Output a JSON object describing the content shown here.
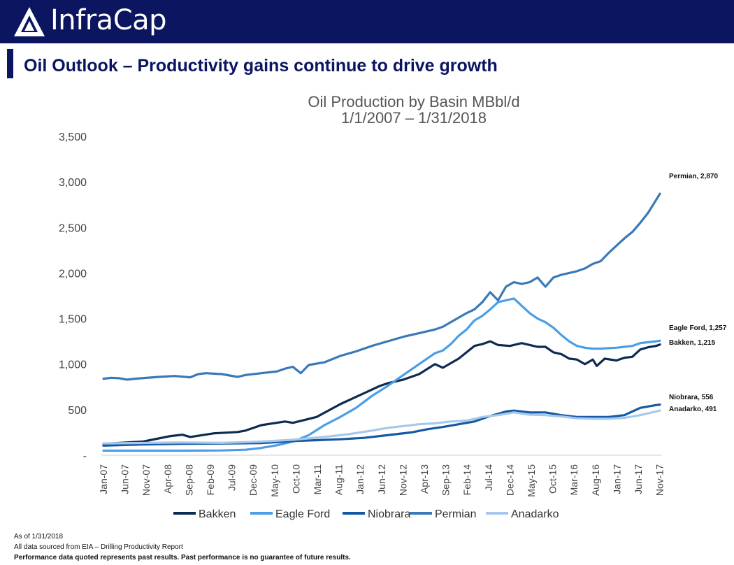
{
  "header": {
    "brand": "InfraCap"
  },
  "page_title": "Oil Outlook – Productivity gains continue to drive growth",
  "colors": {
    "banner": "#0b1560",
    "bakken": "#0d2a52",
    "eagle_ford": "#4a9ee6",
    "niobrara": "#1459a3",
    "permian": "#3b78b8",
    "anadarko": "#a7c8ea"
  },
  "chart_data": {
    "type": "line",
    "title": "Oil Production by Basin MBbl/d",
    "subtitle": "1/1/2007 – 1/31/2018",
    "xlabel": "",
    "ylabel": "",
    "ylim": [
      0,
      3500
    ],
    "yticks": [
      "-",
      "500",
      "1,000",
      "1,500",
      "2,000",
      "2,500",
      "3,000",
      "3,500"
    ],
    "x_ticks": [
      "Jan-07",
      "Jun-07",
      "Nov-07",
      "Apr-08",
      "Sep-08",
      "Feb-09",
      "Jul-09",
      "Dec-09",
      "May-10",
      "Oct-10",
      "Mar-11",
      "Aug-11",
      "Jan-12",
      "Jun-12",
      "Nov-12",
      "Apr-13",
      "Sep-13",
      "Feb-14",
      "Jul-14",
      "Dec-14",
      "May-15",
      "Oct-15",
      "Mar-16",
      "Aug-16",
      "Jan-17",
      "Jun-17",
      "Nov-17"
    ],
    "x_start": "Jan-07",
    "x_end": "Jan-18",
    "legend_position": "bottom",
    "grid": false,
    "series": [
      {
        "name": "Bakken",
        "color": "#0d2a52",
        "end_label": "Bakken, 1,215",
        "points": [
          [
            0,
            125
          ],
          [
            10,
            150
          ],
          [
            17,
            210
          ],
          [
            20,
            225
          ],
          [
            22,
            200
          ],
          [
            28,
            240
          ],
          [
            34,
            255
          ],
          [
            36,
            270
          ],
          [
            40,
            330
          ],
          [
            46,
            370
          ],
          [
            48,
            355
          ],
          [
            54,
            420
          ],
          [
            60,
            560
          ],
          [
            66,
            680
          ],
          [
            70,
            760
          ],
          [
            72,
            790
          ],
          [
            76,
            830
          ],
          [
            80,
            890
          ],
          [
            84,
            1000
          ],
          [
            86,
            960
          ],
          [
            90,
            1060
          ],
          [
            94,
            1200
          ],
          [
            96,
            1220
          ],
          [
            98,
            1250
          ],
          [
            100,
            1210
          ],
          [
            103,
            1200
          ],
          [
            106,
            1230
          ],
          [
            110,
            1190
          ],
          [
            112,
            1190
          ],
          [
            114,
            1130
          ],
          [
            116,
            1110
          ],
          [
            118,
            1060
          ],
          [
            120,
            1050
          ],
          [
            122,
            1000
          ],
          [
            124,
            1050
          ],
          [
            125,
            980
          ],
          [
            127,
            1060
          ],
          [
            130,
            1040
          ],
          [
            132,
            1070
          ],
          [
            134,
            1080
          ],
          [
            136,
            1160
          ],
          [
            138,
            1185
          ],
          [
            140,
            1200
          ],
          [
            141,
            1215
          ]
        ]
      },
      {
        "name": "Eagle Ford",
        "color": "#4a9ee6",
        "end_label": "Eagle Ford, 1,257",
        "points": [
          [
            0,
            50
          ],
          [
            20,
            50
          ],
          [
            30,
            52
          ],
          [
            36,
            60
          ],
          [
            40,
            80
          ],
          [
            44,
            110
          ],
          [
            48,
            150
          ],
          [
            52,
            220
          ],
          [
            56,
            330
          ],
          [
            60,
            420
          ],
          [
            64,
            520
          ],
          [
            68,
            650
          ],
          [
            72,
            760
          ],
          [
            76,
            880
          ],
          [
            80,
            1000
          ],
          [
            84,
            1120
          ],
          [
            86,
            1150
          ],
          [
            88,
            1220
          ],
          [
            90,
            1310
          ],
          [
            92,
            1380
          ],
          [
            94,
            1480
          ],
          [
            96,
            1530
          ],
          [
            98,
            1600
          ],
          [
            100,
            1680
          ],
          [
            102,
            1700
          ],
          [
            104,
            1720
          ],
          [
            106,
            1640
          ],
          [
            108,
            1560
          ],
          [
            110,
            1500
          ],
          [
            112,
            1460
          ],
          [
            114,
            1400
          ],
          [
            116,
            1320
          ],
          [
            118,
            1250
          ],
          [
            120,
            1200
          ],
          [
            122,
            1180
          ],
          [
            124,
            1170
          ],
          [
            126,
            1170
          ],
          [
            128,
            1175
          ],
          [
            130,
            1180
          ],
          [
            132,
            1190
          ],
          [
            134,
            1200
          ],
          [
            136,
            1230
          ],
          [
            138,
            1240
          ],
          [
            140,
            1250
          ],
          [
            141,
            1257
          ]
        ]
      },
      {
        "name": "Niobrara",
        "color": "#1459a3",
        "end_label": "Niobrara, 556",
        "points": [
          [
            0,
            105
          ],
          [
            10,
            118
          ],
          [
            20,
            125
          ],
          [
            30,
            128
          ],
          [
            40,
            133
          ],
          [
            48,
            155
          ],
          [
            54,
            165
          ],
          [
            60,
            175
          ],
          [
            66,
            190
          ],
          [
            70,
            210
          ],
          [
            74,
            230
          ],
          [
            78,
            250
          ],
          [
            82,
            285
          ],
          [
            86,
            310
          ],
          [
            90,
            340
          ],
          [
            94,
            370
          ],
          [
            98,
            430
          ],
          [
            102,
            480
          ],
          [
            104,
            490
          ],
          [
            108,
            470
          ],
          [
            112,
            470
          ],
          [
            116,
            440
          ],
          [
            120,
            420
          ],
          [
            124,
            420
          ],
          [
            128,
            420
          ],
          [
            132,
            440
          ],
          [
            134,
            480
          ],
          [
            136,
            520
          ],
          [
            138,
            535
          ],
          [
            140,
            550
          ],
          [
            141,
            556
          ]
        ]
      },
      {
        "name": "Permian",
        "color": "#3b78b8",
        "end_label": "Permian, 2,870",
        "points": [
          [
            0,
            840
          ],
          [
            2,
            850
          ],
          [
            4,
            845
          ],
          [
            6,
            830
          ],
          [
            8,
            840
          ],
          [
            14,
            860
          ],
          [
            18,
            870
          ],
          [
            22,
            855
          ],
          [
            24,
            890
          ],
          [
            26,
            900
          ],
          [
            28,
            895
          ],
          [
            30,
            890
          ],
          [
            34,
            860
          ],
          [
            36,
            880
          ],
          [
            40,
            900
          ],
          [
            44,
            920
          ],
          [
            46,
            950
          ],
          [
            48,
            970
          ],
          [
            50,
            900
          ],
          [
            52,
            990
          ],
          [
            56,
            1020
          ],
          [
            60,
            1090
          ],
          [
            64,
            1140
          ],
          [
            68,
            1200
          ],
          [
            72,
            1250
          ],
          [
            76,
            1300
          ],
          [
            80,
            1340
          ],
          [
            84,
            1380
          ],
          [
            86,
            1410
          ],
          [
            88,
            1460
          ],
          [
            90,
            1510
          ],
          [
            92,
            1560
          ],
          [
            94,
            1600
          ],
          [
            96,
            1680
          ],
          [
            98,
            1790
          ],
          [
            100,
            1700
          ],
          [
            102,
            1850
          ],
          [
            104,
            1900
          ],
          [
            106,
            1880
          ],
          [
            108,
            1900
          ],
          [
            110,
            1950
          ],
          [
            112,
            1850
          ],
          [
            114,
            1950
          ],
          [
            116,
            1980
          ],
          [
            118,
            2000
          ],
          [
            120,
            2020
          ],
          [
            122,
            2050
          ],
          [
            124,
            2100
          ],
          [
            126,
            2130
          ],
          [
            128,
            2220
          ],
          [
            130,
            2300
          ],
          [
            132,
            2380
          ],
          [
            134,
            2450
          ],
          [
            136,
            2550
          ],
          [
            138,
            2660
          ],
          [
            140,
            2800
          ],
          [
            141,
            2870
          ]
        ]
      },
      {
        "name": "Anadarko",
        "color": "#a7c8ea",
        "end_label": "Anadarko, 491",
        "points": [
          [
            0,
            130
          ],
          [
            20,
            140
          ],
          [
            30,
            135
          ],
          [
            40,
            150
          ],
          [
            48,
            170
          ],
          [
            56,
            200
          ],
          [
            62,
            230
          ],
          [
            68,
            270
          ],
          [
            72,
            300
          ],
          [
            76,
            320
          ],
          [
            80,
            340
          ],
          [
            84,
            350
          ],
          [
            88,
            370
          ],
          [
            92,
            380
          ],
          [
            96,
            420
          ],
          [
            100,
            440
          ],
          [
            104,
            470
          ],
          [
            108,
            445
          ],
          [
            112,
            440
          ],
          [
            116,
            425
          ],
          [
            120,
            405
          ],
          [
            124,
            400
          ],
          [
            128,
            400
          ],
          [
            132,
            410
          ],
          [
            136,
            440
          ],
          [
            140,
            480
          ],
          [
            141,
            491
          ]
        ]
      }
    ]
  },
  "footer": {
    "as_of": "As of 1/31/2018",
    "source": "All data sourced from EIA – Drilling Productivity Report",
    "disclaimer": "Performance data quoted represents past results. Past performance is no guarantee of future results."
  }
}
